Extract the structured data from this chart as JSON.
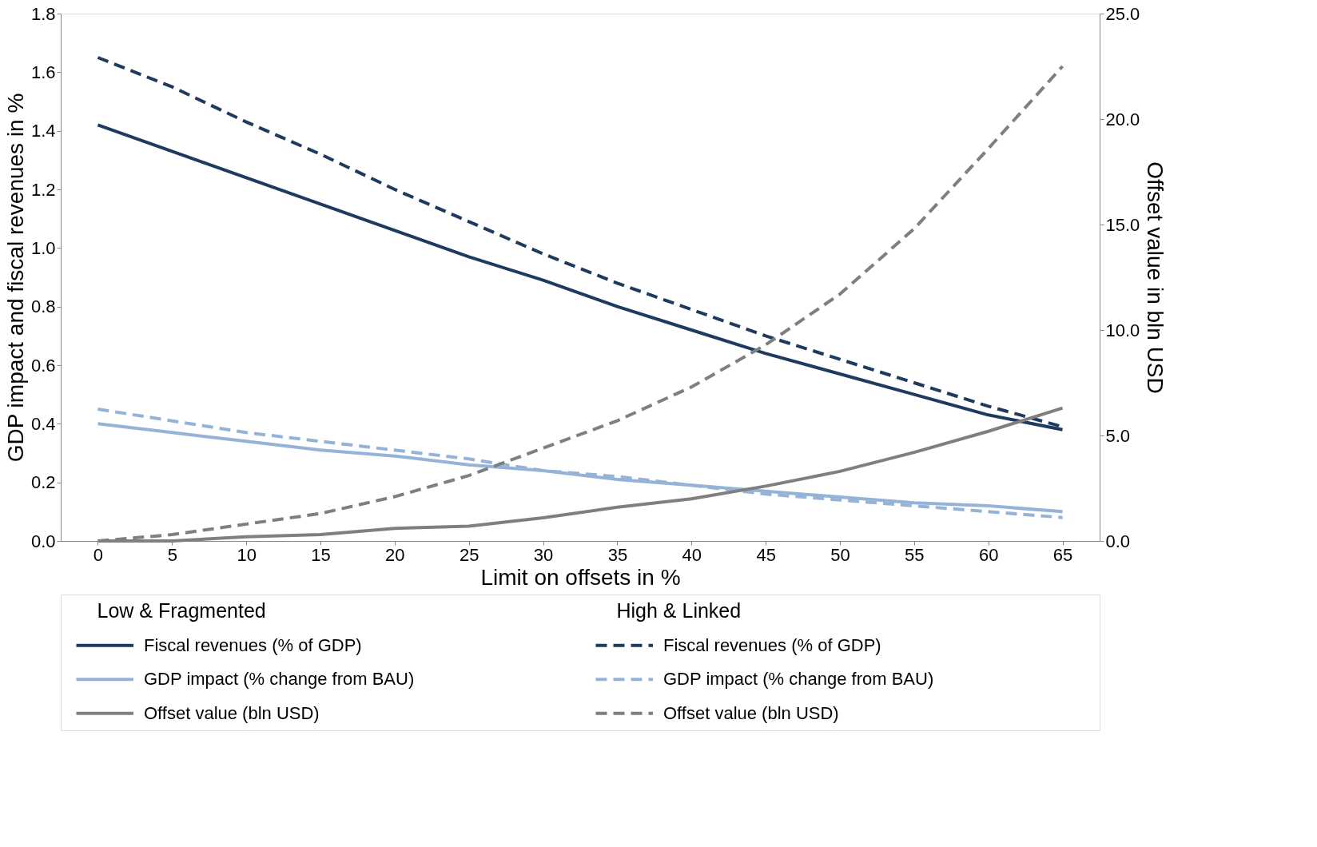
{
  "chart_data": {
    "type": "line",
    "xlabel": "Limit on offsets in %",
    "ylabel": "GDP impact and fiscal revenues in %",
    "y2label": "Offset value in bln USD",
    "categories": [
      "0",
      "5",
      "10",
      "15",
      "20",
      "25",
      "30",
      "35",
      "40",
      "45",
      "50",
      "55",
      "60",
      "65"
    ],
    "series": [
      {
        "name": "Fiscal revenues (% of GDP)",
        "color": "#1f3a5f",
        "line_style": "solid",
        "values": [
          1.42,
          1.33,
          1.24,
          1.15,
          1.06,
          0.97,
          0.89,
          0.8,
          0.72,
          0.64,
          0.57,
          0.5,
          0.43,
          0.38
        ]
      },
      {
        "name": "GDP impact (% change from BAU)",
        "color": "#95b3d7",
        "line_style": "solid",
        "values": [
          0.4,
          0.37,
          0.34,
          0.31,
          0.29,
          0.26,
          0.24,
          0.21,
          0.19,
          0.17,
          0.15,
          0.13,
          0.12,
          0.1
        ]
      },
      {
        "name": "Offset value (bln USD)",
        "color": "#7f7f7f",
        "line_style": "solid",
        "axis": "y2",
        "values": [
          0,
          0,
          0.2,
          0.3,
          0.6,
          0.7,
          1.1,
          1.6,
          2.0,
          2.6,
          3.3,
          4.2,
          5.2,
          6.3
        ]
      },
      {
        "name": "Fiscal revenues (% of GDP)",
        "color": "#1f3a5f",
        "line_style": "dashed",
        "values": [
          1.65,
          1.55,
          1.43,
          1.32,
          1.2,
          1.09,
          0.98,
          0.88,
          0.79,
          0.7,
          0.62,
          0.54,
          0.46,
          0.39
        ]
      },
      {
        "name": "GDP impact (% change from BAU)",
        "color": "#95b3d7",
        "line_style": "dashed",
        "values": [
          0.45,
          0.41,
          0.37,
          0.34,
          0.31,
          0.28,
          0.24,
          0.22,
          0.19,
          0.16,
          0.14,
          0.12,
          0.1,
          0.08
        ]
      },
      {
        "name": "Offset value (bln USD)",
        "color": "#7f7f7f",
        "line_style": "dashed",
        "axis": "y2",
        "values": [
          0,
          0.3,
          0.8,
          1.3,
          2.1,
          3.1,
          4.4,
          5.7,
          7.3,
          9.3,
          11.7,
          14.8,
          18.6,
          22.5
        ]
      }
    ],
    "ylim": [
      0,
      1.8
    ],
    "yticks": [
      {
        "value": 0,
        "label": "0.0"
      },
      {
        "value": 0.2,
        "label": "0.2"
      },
      {
        "value": 0.4,
        "label": "0.4"
      },
      {
        "value": 0.6,
        "label": "0.6"
      },
      {
        "value": 0.8,
        "label": "0.8"
      },
      {
        "value": 1.0,
        "label": "1.0"
      },
      {
        "value": 1.2,
        "label": "1.2"
      },
      {
        "value": 1.4,
        "label": "1.4"
      },
      {
        "value": 1.6,
        "label": "1.6"
      },
      {
        "value": 1.8,
        "label": "1.8"
      }
    ],
    "y2lim": [
      0,
      25
    ],
    "y2ticks": [
      {
        "value": 0,
        "label": "0.0"
      },
      {
        "value": 5,
        "label": "5.0"
      },
      {
        "value": 10,
        "label": "10.0"
      },
      {
        "value": 15,
        "label": "15.0"
      },
      {
        "value": 20,
        "label": "20.0"
      },
      {
        "value": 25,
        "label": "25.0"
      }
    ],
    "annotations": [
      "Low & Fragmented",
      "High & Linked"
    ],
    "legend": "bottom",
    "grid": false
  }
}
